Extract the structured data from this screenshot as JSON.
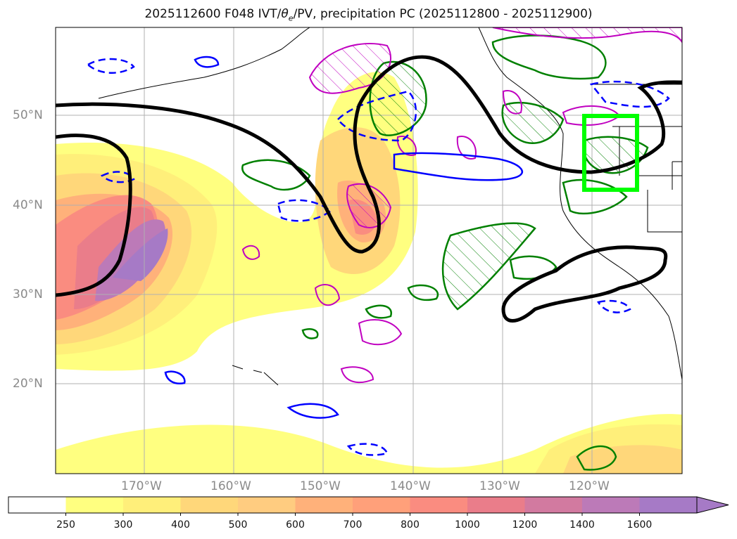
{
  "title": {
    "date_forecast": "2025112600 F048 IVT/",
    "theta": "θ",
    "theta_sub": "e",
    "rest": "/PV, precipitation PC (2025112800 - 2025112900)"
  },
  "lat_labels": [
    "50°N",
    "40°N",
    "30°N",
    "20°N"
  ],
  "lon_labels": [
    "170°W",
    "160°W",
    "150°W",
    "140°W",
    "130°W",
    "120°W"
  ],
  "colorbar": {
    "ticks": [
      "250",
      "300",
      "400",
      "500",
      "600",
      "700",
      "800",
      "1000",
      "1200",
      "1400",
      "1600"
    ],
    "colors": [
      "#ffffff",
      "#ffff80",
      "#ffef7a",
      "#ffd77a",
      "#ffcc80",
      "#ffb17a",
      "#ffa07a",
      "#fa8c80",
      "#ea7d8a",
      "#d27aa0",
      "#bc7ab8",
      "#a67ac6"
    ]
  },
  "colors": {
    "ivt_low": "#ffff80",
    "ivt_high": "#a67ac6",
    "theta_contour": "#0000ff",
    "precip_contour": "#008000",
    "pv_contour": "#c000c0",
    "region_box": "#00ff00",
    "pv_line": "#000000"
  }
}
